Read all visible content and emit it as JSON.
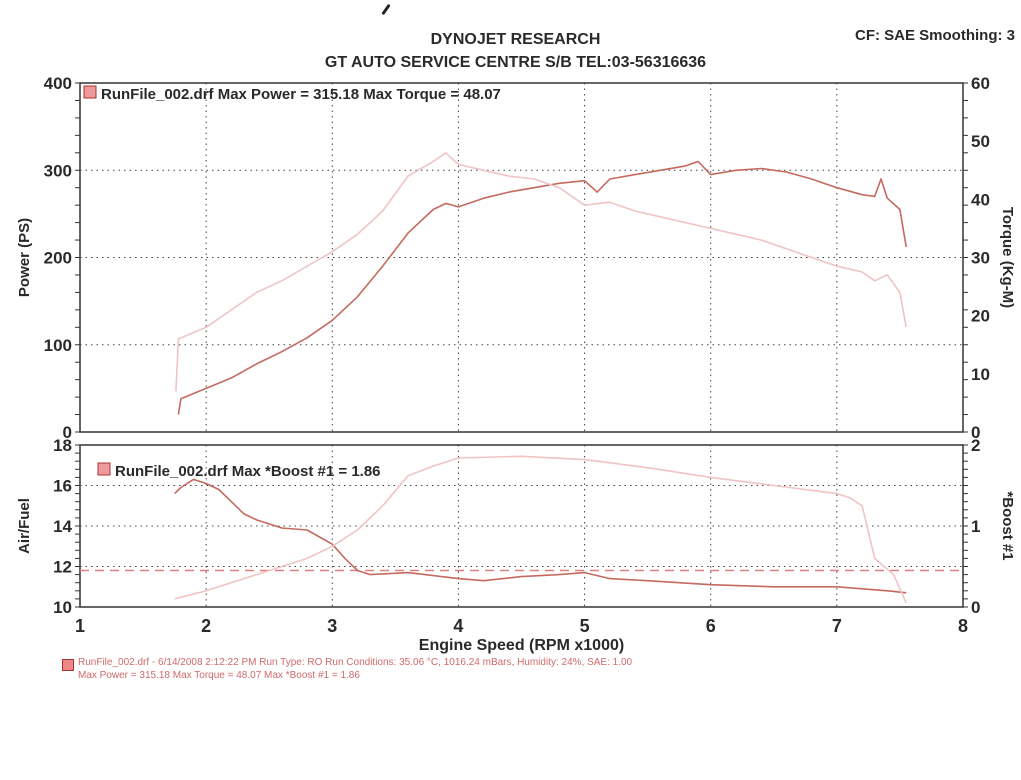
{
  "header": {
    "title": "DYNOJET RESEARCH",
    "subtitle": "GT AUTO SERVICE CENTRE S/B TEL:03-56316636",
    "settings": "CF: SAE  Smoothing: 3"
  },
  "colors": {
    "curve_dark": "#c46a5e",
    "curve_light": "#f0c4c4",
    "grid": "#444444",
    "frame": "#333333",
    "footer_text": "#d06a6a"
  },
  "chart_data": [
    {
      "type": "line",
      "legend": "RunFile_002.drf Max Power = 315.18      Max Torque = 48.07",
      "xlabel": "Engine Speed (RPM x1000)",
      "xlim": [
        1,
        8
      ],
      "x_ticks": [
        "1",
        "2",
        "3",
        "4",
        "5",
        "6",
        "7",
        "8"
      ],
      "ylabel_left": "Power (PS)",
      "ylim_left": [
        0,
        400
      ],
      "y_ticks_left": [
        "0",
        "100",
        "200",
        "300",
        "400"
      ],
      "ylabel_right": "Torque (Kg-M)",
      "ylim_right": [
        0,
        60
      ],
      "y_ticks_right": [
        "0",
        "10",
        "20",
        "30",
        "40",
        "50",
        "60"
      ],
      "grid": true,
      "series": [
        {
          "name": "Power",
          "axis": "left",
          "color": "#c46a5e",
          "x": [
            1.78,
            1.8,
            2.0,
            2.2,
            2.4,
            2.6,
            2.8,
            3.0,
            3.2,
            3.4,
            3.6,
            3.8,
            3.9,
            4.0,
            4.2,
            4.4,
            4.6,
            4.8,
            5.0,
            5.1,
            5.2,
            5.4,
            5.6,
            5.8,
            5.9,
            6.0,
            6.2,
            6.4,
            6.6,
            6.8,
            7.0,
            7.2,
            7.3,
            7.35,
            7.4,
            7.5,
            7.55
          ],
          "y": [
            20,
            38,
            50,
            62,
            78,
            92,
            108,
            128,
            155,
            190,
            228,
            255,
            262,
            258,
            268,
            275,
            280,
            285,
            288,
            275,
            290,
            295,
            300,
            305,
            310,
            295,
            300,
            302,
            298,
            290,
            280,
            272,
            270,
            290,
            268,
            255,
            212
          ]
        },
        {
          "name": "Torque",
          "axis": "right",
          "color": "#f0c4c4",
          "x": [
            1.76,
            1.78,
            2.0,
            2.2,
            2.4,
            2.6,
            2.8,
            3.0,
            3.2,
            3.4,
            3.6,
            3.8,
            3.9,
            4.0,
            4.2,
            4.4,
            4.6,
            4.8,
            5.0,
            5.2,
            5.4,
            5.6,
            5.8,
            6.0,
            6.2,
            6.4,
            6.6,
            6.8,
            7.0,
            7.2,
            7.3,
            7.4,
            7.5,
            7.55
          ],
          "y": [
            7,
            16,
            18,
            21,
            24,
            26,
            28.5,
            31,
            34,
            38,
            44,
            46.5,
            48,
            46,
            45,
            44,
            43.5,
            42,
            39,
            39.5,
            38,
            37,
            36,
            35,
            34,
            33,
            31.5,
            30,
            28.5,
            27.5,
            26,
            27,
            24,
            18
          ]
        }
      ]
    },
    {
      "type": "line",
      "legend": "RunFile_002.drf Max *Boost #1 = 1.86",
      "xlabel": "Engine Speed (RPM x1000)",
      "xlim": [
        1,
        8
      ],
      "x_ticks": [
        "1",
        "2",
        "3",
        "4",
        "5",
        "6",
        "7",
        "8"
      ],
      "ylabel_left": "Air/Fuel",
      "ylim_left": [
        10,
        18
      ],
      "y_ticks_left": [
        "10",
        "12",
        "14",
        "16",
        "18"
      ],
      "ylabel_right": "*Boost #1",
      "ylim_right": [
        0,
        2
      ],
      "y_ticks_right": [
        "0",
        "1",
        "2"
      ],
      "grid": true,
      "reference_line": {
        "axis": "left",
        "y": 11.8,
        "style": "dashed"
      },
      "series": [
        {
          "name": "Air/Fuel",
          "axis": "left",
          "color": "#c46a5e",
          "x": [
            1.75,
            1.8,
            1.9,
            2.0,
            2.1,
            2.2,
            2.3,
            2.4,
            2.6,
            2.8,
            3.0,
            3.1,
            3.2,
            3.3,
            3.6,
            4.0,
            4.2,
            4.5,
            4.8,
            5.0,
            5.2,
            5.5,
            6.0,
            6.5,
            7.0,
            7.2,
            7.4,
            7.55
          ],
          "y": [
            15.6,
            15.9,
            16.3,
            16.1,
            15.8,
            15.2,
            14.6,
            14.3,
            13.9,
            13.8,
            13.1,
            12.4,
            11.8,
            11.6,
            11.7,
            11.4,
            11.3,
            11.5,
            11.6,
            11.7,
            11.4,
            11.3,
            11.1,
            11.0,
            11.0,
            10.9,
            10.8,
            10.7
          ]
        },
        {
          "name": "*Boost #1",
          "axis": "right",
          "color": "#f0c4c4",
          "x": [
            1.75,
            2.0,
            2.4,
            2.8,
            3.0,
            3.2,
            3.4,
            3.6,
            3.8,
            4.0,
            4.5,
            5.0,
            5.5,
            6.0,
            6.5,
            7.0,
            7.1,
            7.2,
            7.3,
            7.45,
            7.55
          ],
          "y": [
            0.1,
            0.2,
            0.4,
            0.6,
            0.75,
            0.95,
            1.25,
            1.62,
            1.74,
            1.84,
            1.86,
            1.82,
            1.72,
            1.6,
            1.5,
            1.4,
            1.35,
            1.25,
            0.6,
            0.4,
            0.05
          ]
        }
      ]
    }
  ],
  "footer": {
    "line1": "RunFile_002.drf - 6/14/2008 2:12:22 PM  Run Type: RO  Run Conditions: 35.06 °C, 1016.24 mBars,  Humidity:  24%, SAE: 1.00",
    "line2": "Max Power = 315.18  Max Torque = 48.07  Max *Boost #1 = 1.86"
  }
}
